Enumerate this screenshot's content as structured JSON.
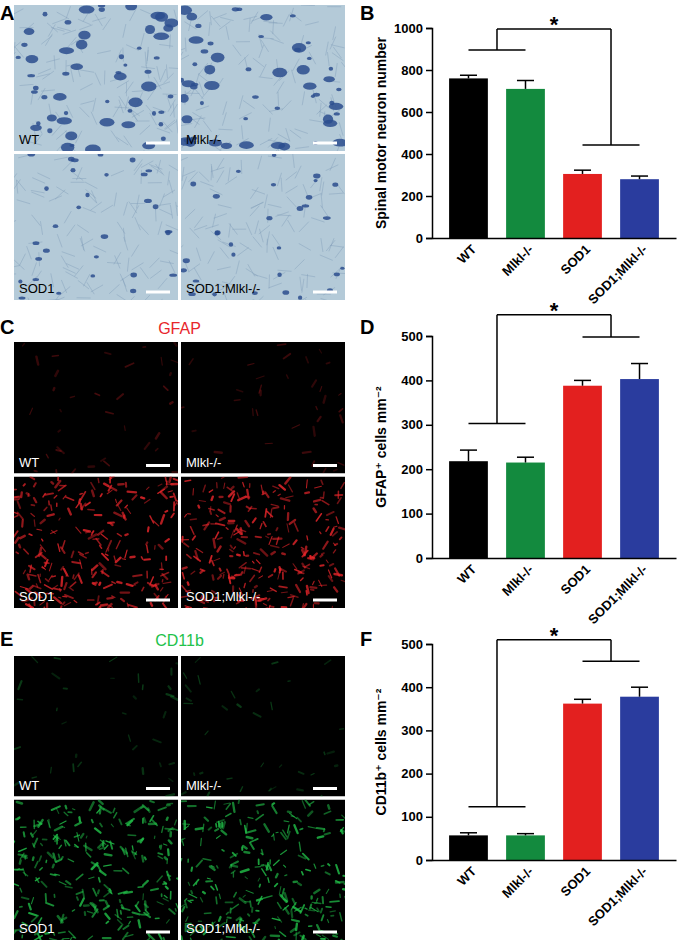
{
  "chart_data": [
    {
      "panel": "B",
      "type": "bar",
      "y_label": "Spinal motor neuron number",
      "categories": [
        "WT",
        "Mlkl-/-",
        "SOD1",
        "SOD1;Mlkl-/-"
      ],
      "values": [
        760,
        710,
        305,
        280
      ],
      "errors": [
        15,
        40,
        18,
        15
      ],
      "colors": [
        "#000000",
        "#138a3e",
        "#e3201f",
        "#2a3c9e"
      ],
      "ylim": [
        0,
        1000
      ],
      "yticks": [
        0,
        200,
        400,
        600,
        800,
        1000
      ],
      "significance": {
        "text": "*",
        "groups": [
          [
            0,
            1
          ],
          [
            2,
            3
          ]
        ]
      }
    },
    {
      "panel": "D",
      "type": "bar",
      "y_label": "GFAP⁺ cells mm⁻²",
      "categories": [
        "WT",
        "Mlkl-/-",
        "SOD1",
        "SOD1;Mlkl-/-"
      ],
      "values": [
        218,
        215,
        388,
        403
      ],
      "errors": [
        25,
        12,
        12,
        35
      ],
      "colors": [
        "#000000",
        "#138a3e",
        "#e3201f",
        "#2a3c9e"
      ],
      "ylim": [
        0,
        500
      ],
      "yticks": [
        0,
        100,
        200,
        300,
        400,
        500
      ],
      "significance": {
        "text": "*",
        "groups": [
          [
            0,
            1
          ],
          [
            2,
            3
          ]
        ]
      }
    },
    {
      "panel": "F",
      "type": "bar",
      "y_label": "CD11b⁺ cells mm⁻²",
      "categories": [
        "WT",
        "Mlkl-/-",
        "SOD1",
        "SOD1;Mlkl-/-"
      ],
      "values": [
        57,
        57,
        362,
        378
      ],
      "errors": [
        6,
        4,
        10,
        22
      ],
      "colors": [
        "#000000",
        "#138a3e",
        "#e3201f",
        "#2a3c9e"
      ],
      "ylim": [
        0,
        500
      ],
      "yticks": [
        0,
        100,
        200,
        300,
        400,
        500
      ],
      "significance": {
        "text": "*",
        "groups": [
          [
            0,
            1
          ],
          [
            2,
            3
          ]
        ]
      }
    }
  ],
  "image_panels": [
    {
      "panel": "A",
      "labels": [
        "WT",
        "Mlkl-/-",
        "SOD1",
        "SOD1;Mlkl-/-"
      ],
      "color": "#2c4d8e"
    },
    {
      "panel": "C",
      "title": "GFAP",
      "labels": [
        "WT",
        "Mlkl-/-",
        "SOD1",
        "SOD1;Mlkl-/-"
      ],
      "color": "#e8262b"
    },
    {
      "panel": "E",
      "title": "CD11b",
      "labels": [
        "WT",
        "Mlkl-/-",
        "SOD1",
        "SOD1;Mlkl-/-"
      ],
      "color": "#22c24a"
    }
  ]
}
